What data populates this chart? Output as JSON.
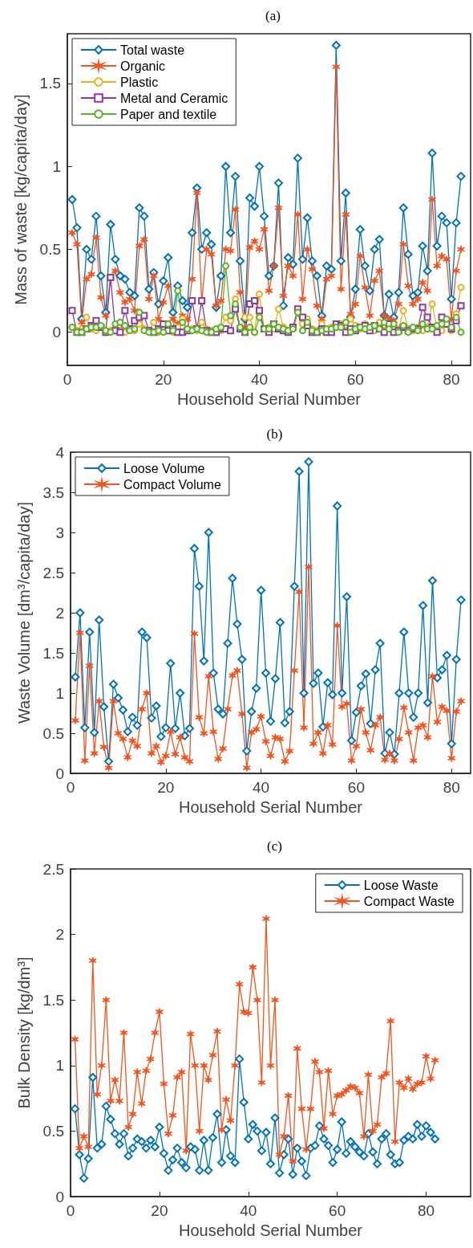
{
  "chart_data": [
    {
      "type": "line",
      "title": "(a)",
      "xlabel": "Household Serial Number",
      "ylabel": "Mass of waste [kg/capita/day]",
      "xlim": [
        0,
        84
      ],
      "xticks": [
        0,
        20,
        40,
        60,
        80
      ],
      "ylim": [
        -0.2,
        1.8
      ],
      "yticks": [
        0,
        0.5,
        1,
        1.5
      ],
      "grid": false,
      "legend": "top left",
      "x": [
        1,
        2,
        3,
        4,
        5,
        6,
        7,
        8,
        9,
        10,
        11,
        12,
        13,
        14,
        15,
        16,
        17,
        18,
        19,
        20,
        21,
        22,
        23,
        24,
        25,
        26,
        27,
        28,
        29,
        30,
        31,
        32,
        33,
        34,
        35,
        36,
        37,
        38,
        39,
        40,
        41,
        42,
        43,
        44,
        45,
        46,
        47,
        48,
        49,
        50,
        51,
        52,
        53,
        54,
        55,
        56,
        57,
        58,
        59,
        60,
        61,
        62,
        63,
        64,
        65,
        66,
        67,
        68,
        69,
        70,
        71,
        72,
        73,
        74,
        75,
        76,
        77,
        78,
        79,
        80,
        81,
        82
      ],
      "series": [
        {
          "name": "Total waste",
          "color": "#0072bd",
          "marker": "diamond",
          "values": [
            0.8,
            0.63,
            0.08,
            0.5,
            0.44,
            0.7,
            0.34,
            0.12,
            0.65,
            0.44,
            0.34,
            0.32,
            0.24,
            0.22,
            0.75,
            0.7,
            0.26,
            0.36,
            0.17,
            0.31,
            0.45,
            0.12,
            0.28,
            0.19,
            0.15,
            0.6,
            0.87,
            0.5,
            0.6,
            0.53,
            0.15,
            0.34,
            1.0,
            0.6,
            0.94,
            0.43,
            0.08,
            0.81,
            0.76,
            1.0,
            0.7,
            0.34,
            0.4,
            0.9,
            0.16,
            0.45,
            0.41,
            1.05,
            0.44,
            0.69,
            0.43,
            0.34,
            0.1,
            0.4,
            0.38,
            1.73,
            0.43,
            0.84,
            0.09,
            0.26,
            0.62,
            0.4,
            0.25,
            0.5,
            0.56,
            0.1,
            0.23,
            0.09,
            0.24,
            0.75,
            0.47,
            0.22,
            0.24,
            0.52,
            0.37,
            1.08,
            0.52,
            0.7,
            0.66,
            0.2,
            0.66,
            0.94
          ]
        },
        {
          "name": "Organic",
          "color": "#f5541e",
          "marker": "cross",
          "values": [
            0.6,
            0.53,
            0.06,
            0.32,
            0.35,
            0.57,
            0.21,
            0.1,
            0.33,
            0.37,
            0.24,
            0.18,
            0.2,
            0.13,
            0.52,
            0.56,
            0.2,
            0.34,
            0.08,
            0.18,
            0.28,
            0.08,
            0.05,
            0.1,
            0.08,
            0.32,
            0.84,
            0.18,
            0.5,
            0.47,
            0.16,
            0.19,
            0.5,
            0.49,
            0.74,
            0.24,
            0.03,
            0.51,
            0.55,
            0.5,
            0.62,
            0.25,
            0.4,
            0.75,
            0.22,
            0.4,
            0.34,
            0.71,
            0.2,
            0.5,
            0.38,
            0.16,
            0.08,
            0.32,
            0.34,
            1.6,
            0.26,
            0.71,
            0.11,
            0.17,
            0.46,
            0.27,
            0.1,
            0.31,
            0.37,
            0.1,
            0.08,
            0.07,
            0.17,
            0.53,
            0.28,
            0.17,
            0.2,
            0.3,
            0.25,
            0.8,
            0.4,
            0.46,
            0.44,
            0.08,
            0.37,
            0.5
          ]
        },
        {
          "name": "Plastic",
          "color": "#edb120",
          "marker": "circle",
          "values": [
            0.03,
            0.01,
            0.02,
            0.09,
            0.02,
            0.01,
            0.03,
            0.0,
            0.01,
            0.02,
            0.01,
            0.0,
            0.02,
            0.01,
            0.05,
            0.02,
            0.01,
            0.06,
            0.0,
            0.02,
            0.01,
            0.0,
            0.03,
            0.08,
            0.01,
            0.02,
            0.01,
            0.06,
            0.02,
            0.01,
            0.0,
            0.01,
            0.09,
            0.07,
            0.2,
            0.02,
            0.09,
            0.09,
            0.0,
            0.23,
            0.02,
            0.03,
            0.02,
            0.14,
            0.03,
            0.01,
            0.02,
            0.12,
            0.05,
            0.08,
            0.02,
            0.01,
            0.05,
            0.01,
            0.03,
            0.03,
            0.05,
            0.01,
            0.08,
            0.04,
            0.02,
            0.05,
            0.03,
            0.01,
            0.06,
            0.01,
            0.03,
            0.0,
            0.02,
            0.13,
            0.02,
            0.01,
            0.03,
            0.01,
            0.03,
            0.17,
            0.02,
            0.01,
            0.05,
            0.01,
            0.11,
            0.27
          ]
        },
        {
          "name": "Metal and Ceramic",
          "color": "#8e3a9e",
          "marker": "square",
          "values": [
            0.13,
            0.0,
            0.0,
            0.02,
            0.04,
            0.07,
            0.03,
            0.0,
            0.33,
            0.01,
            0.0,
            0.13,
            0.02,
            0.07,
            0.09,
            0.1,
            0.01,
            0.0,
            0.02,
            0.05,
            0.01,
            0.02,
            0.0,
            0.0,
            0.01,
            0.19,
            0.02,
            0.19,
            0.01,
            0.0,
            0.0,
            0.02,
            0.02,
            0.01,
            0.14,
            0.02,
            0.0,
            0.17,
            0.19,
            0.13,
            0.02,
            0.0,
            0.05,
            0.02,
            0.01,
            0.0,
            0.03,
            0.14,
            0.09,
            0.04,
            0.0,
            0.0,
            0.02,
            0.0,
            0.0,
            0.05,
            0.04,
            0.0,
            0.02,
            0.01,
            0.03,
            0.04,
            0.01,
            0.04,
            0.02,
            0.0,
            0.05,
            0.0,
            0.01,
            0.03,
            0.01,
            0.02,
            0.02,
            0.15,
            0.09,
            0.03,
            0.0,
            0.09,
            0.05,
            0.02,
            0.07,
            0.16
          ]
        },
        {
          "name": "Paper and textile",
          "color": "#5ab522",
          "marker": "circle",
          "values": [
            0.03,
            0.0,
            0.0,
            0.02,
            0.03,
            0.03,
            0.04,
            0.01,
            0.0,
            0.05,
            0.06,
            0.04,
            0.01,
            0.02,
            0.12,
            0.01,
            0.0,
            0.0,
            0.01,
            0.0,
            0.05,
            0.01,
            0.25,
            0.06,
            0.02,
            0.01,
            0.02,
            0.01,
            0.0,
            0.0,
            0.02,
            0.03,
            0.4,
            0.1,
            0.17,
            0.03,
            0.0,
            0.03,
            0.0,
            0.09,
            0.02,
            0.02,
            0.05,
            0.03,
            0.02,
            0.01,
            0.02,
            0.12,
            0.01,
            0.06,
            0.01,
            0.0,
            0.01,
            0.02,
            0.02,
            0.03,
            0.03,
            0.06,
            0.0,
            0.02,
            0.03,
            0.02,
            0.03,
            0.04,
            0.02,
            0.06,
            0.02,
            0.05,
            0.0,
            0.04,
            0.0,
            0.03,
            0.01,
            0.05,
            0.02,
            0.02,
            0.04,
            0.05,
            0.08,
            0.03,
            0.09,
            0.0
          ]
        }
      ]
    },
    {
      "type": "line",
      "title": "(b)",
      "xlabel": "Household Serial Number",
      "ylabel": "Waste Volume [dm³/capita/day]",
      "xlim": [
        0,
        84
      ],
      "xticks": [
        0,
        20,
        40,
        60,
        80
      ],
      "ylim": [
        0,
        4
      ],
      "yticks": [
        0,
        0.5,
        1,
        1.5,
        2,
        2.5,
        3,
        3.5,
        4
      ],
      "grid": false,
      "legend": "top left",
      "x": [
        1,
        2,
        3,
        4,
        5,
        6,
        7,
        8,
        9,
        10,
        11,
        12,
        13,
        14,
        15,
        16,
        17,
        18,
        19,
        20,
        21,
        22,
        23,
        24,
        25,
        26,
        27,
        28,
        29,
        30,
        31,
        32,
        33,
        34,
        35,
        36,
        37,
        38,
        39,
        40,
        41,
        42,
        43,
        44,
        45,
        46,
        47,
        48,
        49,
        50,
        51,
        52,
        53,
        54,
        55,
        56,
        57,
        58,
        59,
        60,
        61,
        62,
        63,
        64,
        65,
        66,
        67,
        68,
        69,
        70,
        71,
        72,
        73,
        74,
        75,
        76,
        77,
        78,
        79,
        80,
        81,
        82
      ],
      "series": [
        {
          "name": "Loose Volume",
          "color": "#0072bd",
          "marker": "diamond",
          "values": [
            1.2,
            2.0,
            0.57,
            1.76,
            0.51,
            1.91,
            0.83,
            0.15,
            1.11,
            0.94,
            0.79,
            0.52,
            0.7,
            0.6,
            1.76,
            1.69,
            0.69,
            0.84,
            0.46,
            0.57,
            1.37,
            0.56,
            1.0,
            0.47,
            0.56,
            2.8,
            2.33,
            1.4,
            3.0,
            1.25,
            0.8,
            0.74,
            1.62,
            2.43,
            1.86,
            1.42,
            0.28,
            0.77,
            1.06,
            2.28,
            1.25,
            0.65,
            1.18,
            1.88,
            0.63,
            0.77,
            2.33,
            3.76,
            1.0,
            3.88,
            1.12,
            1.25,
            0.58,
            1.13,
            0.98,
            3.33,
            1.0,
            2.2,
            0.41,
            0.76,
            1.09,
            1.24,
            0.62,
            1.29,
            1.62,
            0.25,
            0.51,
            0.24,
            1.0,
            1.76,
            1.0,
            0.7,
            1.0,
            2.09,
            0.88,
            2.4,
            1.19,
            1.29,
            1.47,
            0.37,
            1.42,
            2.16
          ]
        },
        {
          "name": "Compact Volume",
          "color": "#f5541e",
          "marker": "cross",
          "values": [
            0.66,
            1.75,
            0.16,
            1.34,
            0.25,
            0.9,
            0.33,
            0.07,
            0.9,
            0.5,
            0.43,
            0.2,
            0.41,
            0.34,
            0.8,
            1.0,
            0.25,
            0.34,
            0.14,
            0.22,
            0.52,
            0.24,
            0.45,
            0.2,
            0.15,
            1.74,
            0.7,
            0.5,
            1.21,
            0.52,
            0.18,
            0.31,
            0.8,
            1.22,
            1.28,
            0.74,
            0.07,
            0.51,
            0.55,
            0.71,
            0.4,
            0.22,
            0.45,
            0.43,
            0.15,
            0.28,
            1.28,
            2.26,
            0.57,
            2.57,
            0.37,
            0.51,
            0.25,
            0.6,
            0.36,
            1.84,
            0.83,
            0.87,
            0.16,
            0.34,
            0.8,
            0.51,
            0.29,
            0.6,
            0.7,
            0.17,
            0.25,
            0.16,
            0.43,
            0.82,
            0.51,
            0.16,
            0.57,
            0.6,
            0.45,
            1.21,
            0.64,
            0.83,
            0.78,
            0.19,
            0.77,
            0.9
          ]
        }
      ]
    },
    {
      "type": "line",
      "title": "(c)",
      "xlabel": "Household Serial Number",
      "ylabel": "Bulk Density [kg/dm³]",
      "xlim": [
        0,
        90
      ],
      "xticks": [
        0,
        20,
        40,
        60,
        80
      ],
      "ylim": [
        0,
        2.5
      ],
      "yticks": [
        0,
        0.5,
        1,
        1.5,
        2,
        2.5
      ],
      "grid": false,
      "legend": "top right",
      "x": [
        1,
        2,
        3,
        4,
        5,
        6,
        7,
        8,
        9,
        10,
        11,
        12,
        13,
        14,
        15,
        16,
        17,
        18,
        19,
        20,
        21,
        22,
        23,
        24,
        25,
        26,
        27,
        28,
        29,
        30,
        31,
        32,
        33,
        34,
        35,
        36,
        37,
        38,
        39,
        40,
        41,
        42,
        43,
        44,
        45,
        46,
        47,
        48,
        49,
        50,
        51,
        52,
        53,
        54,
        55,
        56,
        57,
        58,
        59,
        60,
        61,
        62,
        63,
        64,
        65,
        66,
        67,
        68,
        69,
        70,
        71,
        72,
        73,
        74,
        75,
        76,
        77,
        78,
        79,
        80,
        81,
        82
      ],
      "series": [
        {
          "name": "Loose Waste",
          "color": "#0072bd",
          "marker": "diamond",
          "values": [
            0.67,
            0.32,
            0.14,
            0.29,
            0.91,
            0.37,
            0.4,
            0.69,
            0.59,
            0.48,
            0.4,
            0.48,
            0.31,
            0.37,
            0.44,
            0.42,
            0.37,
            0.43,
            0.38,
            0.53,
            0.33,
            0.2,
            0.28,
            0.37,
            0.26,
            0.22,
            0.38,
            0.36,
            0.2,
            0.43,
            0.2,
            0.45,
            0.63,
            0.26,
            0.51,
            0.31,
            0.26,
            1.05,
            0.72,
            0.44,
            0.55,
            0.5,
            0.35,
            0.49,
            0.25,
            0.6,
            0.18,
            0.32,
            0.44,
            0.17,
            0.37,
            0.27,
            0.16,
            0.37,
            0.39,
            0.54,
            0.44,
            0.39,
            0.26,
            0.36,
            0.57,
            0.33,
            0.42,
            0.38,
            0.34,
            0.31,
            0.48,
            0.34,
            0.25,
            0.44,
            0.48,
            0.32,
            0.25,
            0.26,
            0.43,
            0.46,
            0.44,
            0.55,
            0.46,
            0.54,
            0.49,
            0.44
          ]
        },
        {
          "name": "Compact Waste",
          "color": "#f5541e",
          "marker": "cross",
          "values": [
            1.2,
            0.37,
            0.46,
            0.38,
            1.8,
            0.78,
            1.0,
            1.5,
            0.73,
            0.89,
            0.73,
            1.25,
            0.53,
            0.63,
            0.95,
            0.71,
            0.96,
            1.05,
            1.25,
            1.41,
            0.86,
            0.48,
            0.62,
            0.91,
            0.95,
            0.35,
            1.24,
            1.0,
            0.5,
            1.0,
            0.89,
            1.08,
            1.26,
            0.51,
            0.74,
            0.58,
            1.0,
            1.62,
            1.41,
            1.4,
            1.75,
            1.5,
            0.87,
            2.12,
            1.0,
            1.5,
            0.32,
            0.46,
            0.77,
            0.27,
            1.13,
            0.67,
            0.36,
            0.67,
            1.03,
            0.95,
            0.52,
            0.96,
            0.63,
            0.77,
            0.78,
            0.81,
            0.84,
            0.83,
            0.79,
            0.46,
            0.93,
            0.5,
            0.55,
            0.91,
            0.94,
            1.34,
            0.42,
            0.87,
            0.83,
            0.9,
            0.82,
            0.86,
            0.87,
            1.07,
            0.9,
            1.04
          ]
        }
      ]
    }
  ]
}
